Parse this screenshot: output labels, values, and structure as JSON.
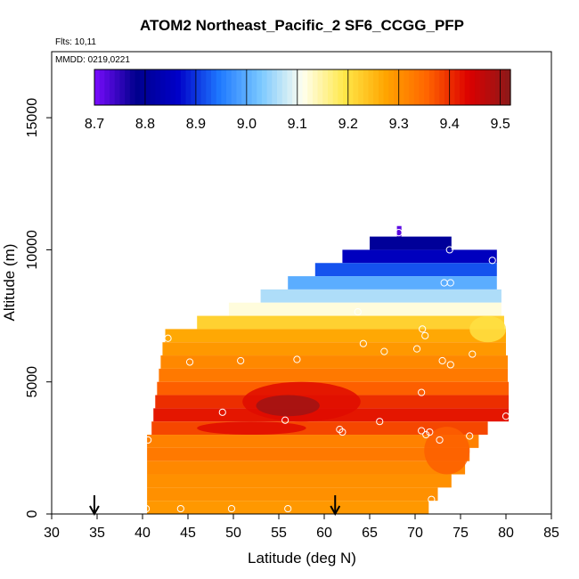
{
  "chart_data": {
    "type": "heatmap",
    "title": "ATOM2 Northeast_Pacific_2 SF6_CCGG_PFP",
    "flights_label": "Flts: 10,11",
    "dates_label": "MMDD: 0219,0221",
    "xlabel": "Latitude (deg N)",
    "ylabel": "Altitude (m)",
    "xlim": [
      30,
      85
    ],
    "ylim": [
      0,
      17500
    ],
    "xticks": [
      "30",
      "35",
      "40",
      "45",
      "50",
      "55",
      "60",
      "65",
      "70",
      "75",
      "80",
      "85"
    ],
    "yticks": [
      "0",
      "5000",
      "10000",
      "15000"
    ],
    "colorbar": {
      "min": 8.7,
      "max": 9.52,
      "ticks": [
        "8.7",
        "8.8",
        "8.9",
        "9.0",
        "9.1",
        "9.2",
        "9.3",
        "9.4",
        "9.5"
      ],
      "stops": [
        "#7a0cff",
        "#00008c",
        "#0000c8",
        "#1e78ff",
        "#7ac8ff",
        "#fffff0",
        "#ffe84a",
        "#ffa500",
        "#ff6400",
        "#dc0000",
        "#8b1a1a"
      ]
    },
    "arrows_latitude": [
      34.7,
      61.2
    ],
    "bands": [
      {
        "alt_lo": 10500,
        "alt_hi": 10900,
        "lat_lo": 68.0,
        "lat_hi": 68.5,
        "value": 8.72
      },
      {
        "alt_lo": 10000,
        "alt_hi": 10500,
        "lat_lo": 65.0,
        "lat_hi": 74.0,
        "value": 8.8
      },
      {
        "alt_lo": 9500,
        "alt_hi": 10000,
        "lat_lo": 62.0,
        "lat_hi": 79.0,
        "value": 8.85
      },
      {
        "alt_lo": 9000,
        "alt_hi": 9500,
        "lat_lo": 59.0,
        "lat_hi": 79.0,
        "value": 8.92
      },
      {
        "alt_lo": 8500,
        "alt_hi": 9000,
        "lat_lo": 56.0,
        "lat_hi": 79.0,
        "value": 9.0
      },
      {
        "alt_lo": 8000,
        "alt_hi": 8500,
        "lat_lo": 53.0,
        "lat_hi": 79.5,
        "value": 9.06
      },
      {
        "alt_lo": 7500,
        "alt_hi": 8000,
        "lat_lo": 49.5,
        "lat_hi": 79.5,
        "value": 9.12
      },
      {
        "alt_lo": 7000,
        "alt_hi": 7500,
        "lat_lo": 46.0,
        "lat_hi": 79.8,
        "value": 9.22
      },
      {
        "alt_lo": 6500,
        "alt_hi": 7000,
        "lat_lo": 42.5,
        "lat_hi": 80.0,
        "value": 9.27
      },
      {
        "alt_lo": 6000,
        "alt_hi": 6500,
        "lat_lo": 42.2,
        "lat_hi": 80.0,
        "value": 9.29
      },
      {
        "alt_lo": 5500,
        "alt_hi": 6000,
        "lat_lo": 42.0,
        "lat_hi": 80.2,
        "value": 9.31
      },
      {
        "alt_lo": 5000,
        "alt_hi": 5500,
        "lat_lo": 41.8,
        "lat_hi": 80.2,
        "value": 9.33
      },
      {
        "alt_lo": 4500,
        "alt_hi": 5000,
        "lat_lo": 41.6,
        "lat_hi": 80.3,
        "value": 9.36
      },
      {
        "alt_lo": 4000,
        "alt_hi": 4500,
        "lat_lo": 41.4,
        "lat_hi": 80.3,
        "value": 9.4
      },
      {
        "alt_lo": 3500,
        "alt_hi": 4000,
        "lat_lo": 41.2,
        "lat_hi": 80.3,
        "value": 9.42
      },
      {
        "alt_lo": 3000,
        "alt_hi": 3500,
        "lat_lo": 41.0,
        "lat_hi": 78.0,
        "value": 9.38
      },
      {
        "alt_lo": 2500,
        "alt_hi": 3000,
        "lat_lo": 40.5,
        "lat_hi": 77.0,
        "value": 9.32
      },
      {
        "alt_lo": 2000,
        "alt_hi": 2500,
        "lat_lo": 40.5,
        "lat_hi": 76.0,
        "value": 9.33
      },
      {
        "alt_lo": 1500,
        "alt_hi": 2000,
        "lat_lo": 40.5,
        "lat_hi": 75.5,
        "value": 9.31
      },
      {
        "alt_lo": 1000,
        "alt_hi": 1500,
        "lat_lo": 40.5,
        "lat_hi": 74.0,
        "value": 9.3
      },
      {
        "alt_lo": 500,
        "alt_hi": 1000,
        "lat_lo": 40.5,
        "lat_hi": 72.5,
        "value": 9.3
      },
      {
        "alt_lo": 0,
        "alt_hi": 500,
        "lat_lo": 40.5,
        "lat_hi": 71.5,
        "value": 9.29
      }
    ],
    "hotspots": [
      {
        "lat_lo": 51.0,
        "lat_hi": 64.0,
        "alt_lo": 3500,
        "alt_hi": 5000,
        "value": 9.43
      },
      {
        "lat_lo": 52.5,
        "lat_hi": 59.5,
        "alt_lo": 3700,
        "alt_hi": 4500,
        "value": 9.5
      },
      {
        "lat_lo": 46.0,
        "lat_hi": 58.0,
        "alt_lo": 3000,
        "alt_hi": 3500,
        "value": 9.43
      },
      {
        "lat_lo": 71.0,
        "lat_hi": 76.0,
        "alt_lo": 1500,
        "alt_hi": 3300,
        "value": 9.36
      },
      {
        "lat_lo": 76.0,
        "lat_hi": 80.0,
        "alt_lo": 6500,
        "alt_hi": 7500,
        "value": 9.2
      }
    ],
    "samples": [
      {
        "lat": 68.2,
        "alt": 10650
      },
      {
        "lat": 73.8,
        "alt": 10000
      },
      {
        "lat": 78.5,
        "alt": 9600
      },
      {
        "lat": 73.2,
        "alt": 8750
      },
      {
        "lat": 73.9,
        "alt": 8750
      },
      {
        "lat": 63.7,
        "alt": 7650
      },
      {
        "lat": 70.8,
        "alt": 7000
      },
      {
        "lat": 71.1,
        "alt": 6750
      },
      {
        "lat": 42.8,
        "alt": 6650
      },
      {
        "lat": 64.3,
        "alt": 6450
      },
      {
        "lat": 66.6,
        "alt": 6150
      },
      {
        "lat": 70.2,
        "alt": 6250
      },
      {
        "lat": 76.3,
        "alt": 6050
      },
      {
        "lat": 45.2,
        "alt": 5750
      },
      {
        "lat": 50.8,
        "alt": 5800
      },
      {
        "lat": 57.0,
        "alt": 5850
      },
      {
        "lat": 73.0,
        "alt": 5800
      },
      {
        "lat": 73.9,
        "alt": 5650
      },
      {
        "lat": 70.7,
        "alt": 4600
      },
      {
        "lat": 48.8,
        "alt": 3850
      },
      {
        "lat": 55.7,
        "alt": 3550
      },
      {
        "lat": 66.1,
        "alt": 3500
      },
      {
        "lat": 80.0,
        "alt": 3700
      },
      {
        "lat": 61.7,
        "alt": 3200
      },
      {
        "lat": 62.0,
        "alt": 3100
      },
      {
        "lat": 70.7,
        "alt": 3150
      },
      {
        "lat": 71.2,
        "alt": 3000
      },
      {
        "lat": 71.6,
        "alt": 3100
      },
      {
        "lat": 72.7,
        "alt": 2800
      },
      {
        "lat": 76.0,
        "alt": 2950
      },
      {
        "lat": 40.6,
        "alt": 2800
      },
      {
        "lat": 40.4,
        "alt": 200
      },
      {
        "lat": 44.2,
        "alt": 200
      },
      {
        "lat": 49.8,
        "alt": 200
      },
      {
        "lat": 56.0,
        "alt": 200
      },
      {
        "lat": 71.8,
        "alt": 550
      }
    ]
  }
}
